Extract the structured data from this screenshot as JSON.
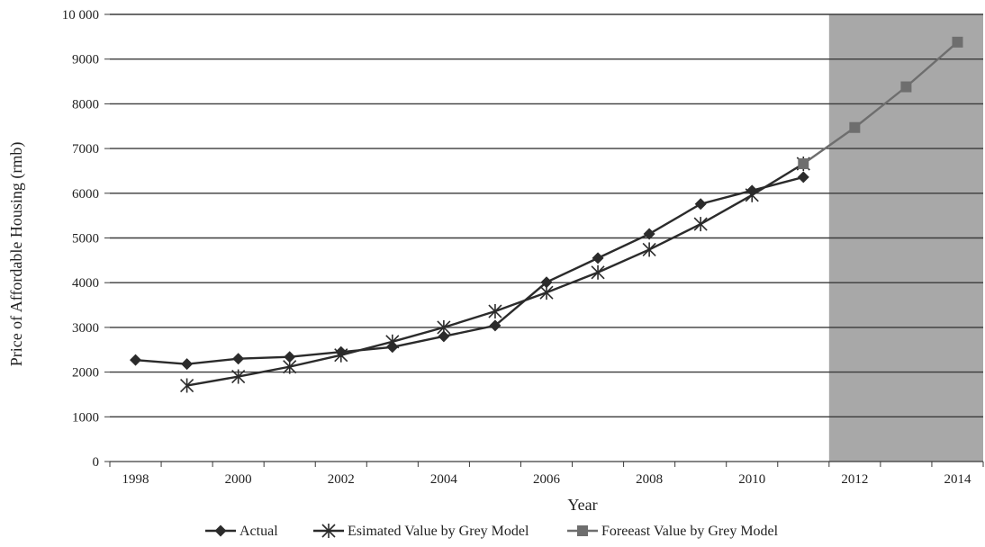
{
  "chart_data": {
    "type": "line",
    "title": "",
    "xlabel": "Year",
    "ylabel": "Price of Affordable Housing (rmb)",
    "xlim": [
      1997.5,
      2014.5
    ],
    "ylim": [
      0,
      10000
    ],
    "x_ticks": [
      1998,
      2000,
      2002,
      2004,
      2006,
      2008,
      2010,
      2012,
      2014
    ],
    "x_tick_labels": [
      "1998",
      "2000",
      "2002",
      "2004",
      "2006",
      "2008",
      "2010",
      "2012",
      "2014"
    ],
    "y_ticks": [
      0,
      1000,
      2000,
      3000,
      4000,
      5000,
      6000,
      7000,
      8000,
      9000,
      10000
    ],
    "y_tick_labels": [
      "0",
      "1000",
      "2000",
      "3000",
      "4000",
      "5000",
      "6000",
      "7000",
      "8000",
      "9000",
      "10 000"
    ],
    "grid": "horizontal",
    "legend_position": "bottom",
    "shaded_region": {
      "x_start": 2011.5,
      "x_end": 2014.5,
      "color": "#a8a8a8"
    },
    "series": [
      {
        "name": "Actual",
        "color": "#2b2b2b",
        "marker": "diamond",
        "x": [
          1998,
          1999,
          2000,
          2001,
          2002,
          2003,
          2004,
          2005,
          2006,
          2007,
          2008,
          2009,
          2010,
          2011
        ],
        "values": [
          2270,
          2180,
          2300,
          2340,
          2450,
          2560,
          2800,
          3040,
          4010,
          4550,
          5090,
          5760,
          6060,
          6360
        ]
      },
      {
        "name": "Esimated Value by Grey Model",
        "color": "#2b2b2b",
        "marker": "asterisk",
        "x": [
          1999,
          2000,
          2001,
          2002,
          2003,
          2004,
          2005,
          2006,
          2007,
          2008,
          2009,
          2010,
          2011
        ],
        "values": [
          1700,
          1900,
          2120,
          2380,
          2680,
          3000,
          3360,
          3780,
          4230,
          4740,
          5310,
          5960,
          6660
        ]
      },
      {
        "name": "Foreeast Value by Grey Model",
        "color": "#6e6e6e",
        "marker": "square",
        "x": [
          2011,
          2012,
          2013,
          2014
        ],
        "values": [
          6660,
          7470,
          8380,
          9380
        ]
      }
    ]
  }
}
